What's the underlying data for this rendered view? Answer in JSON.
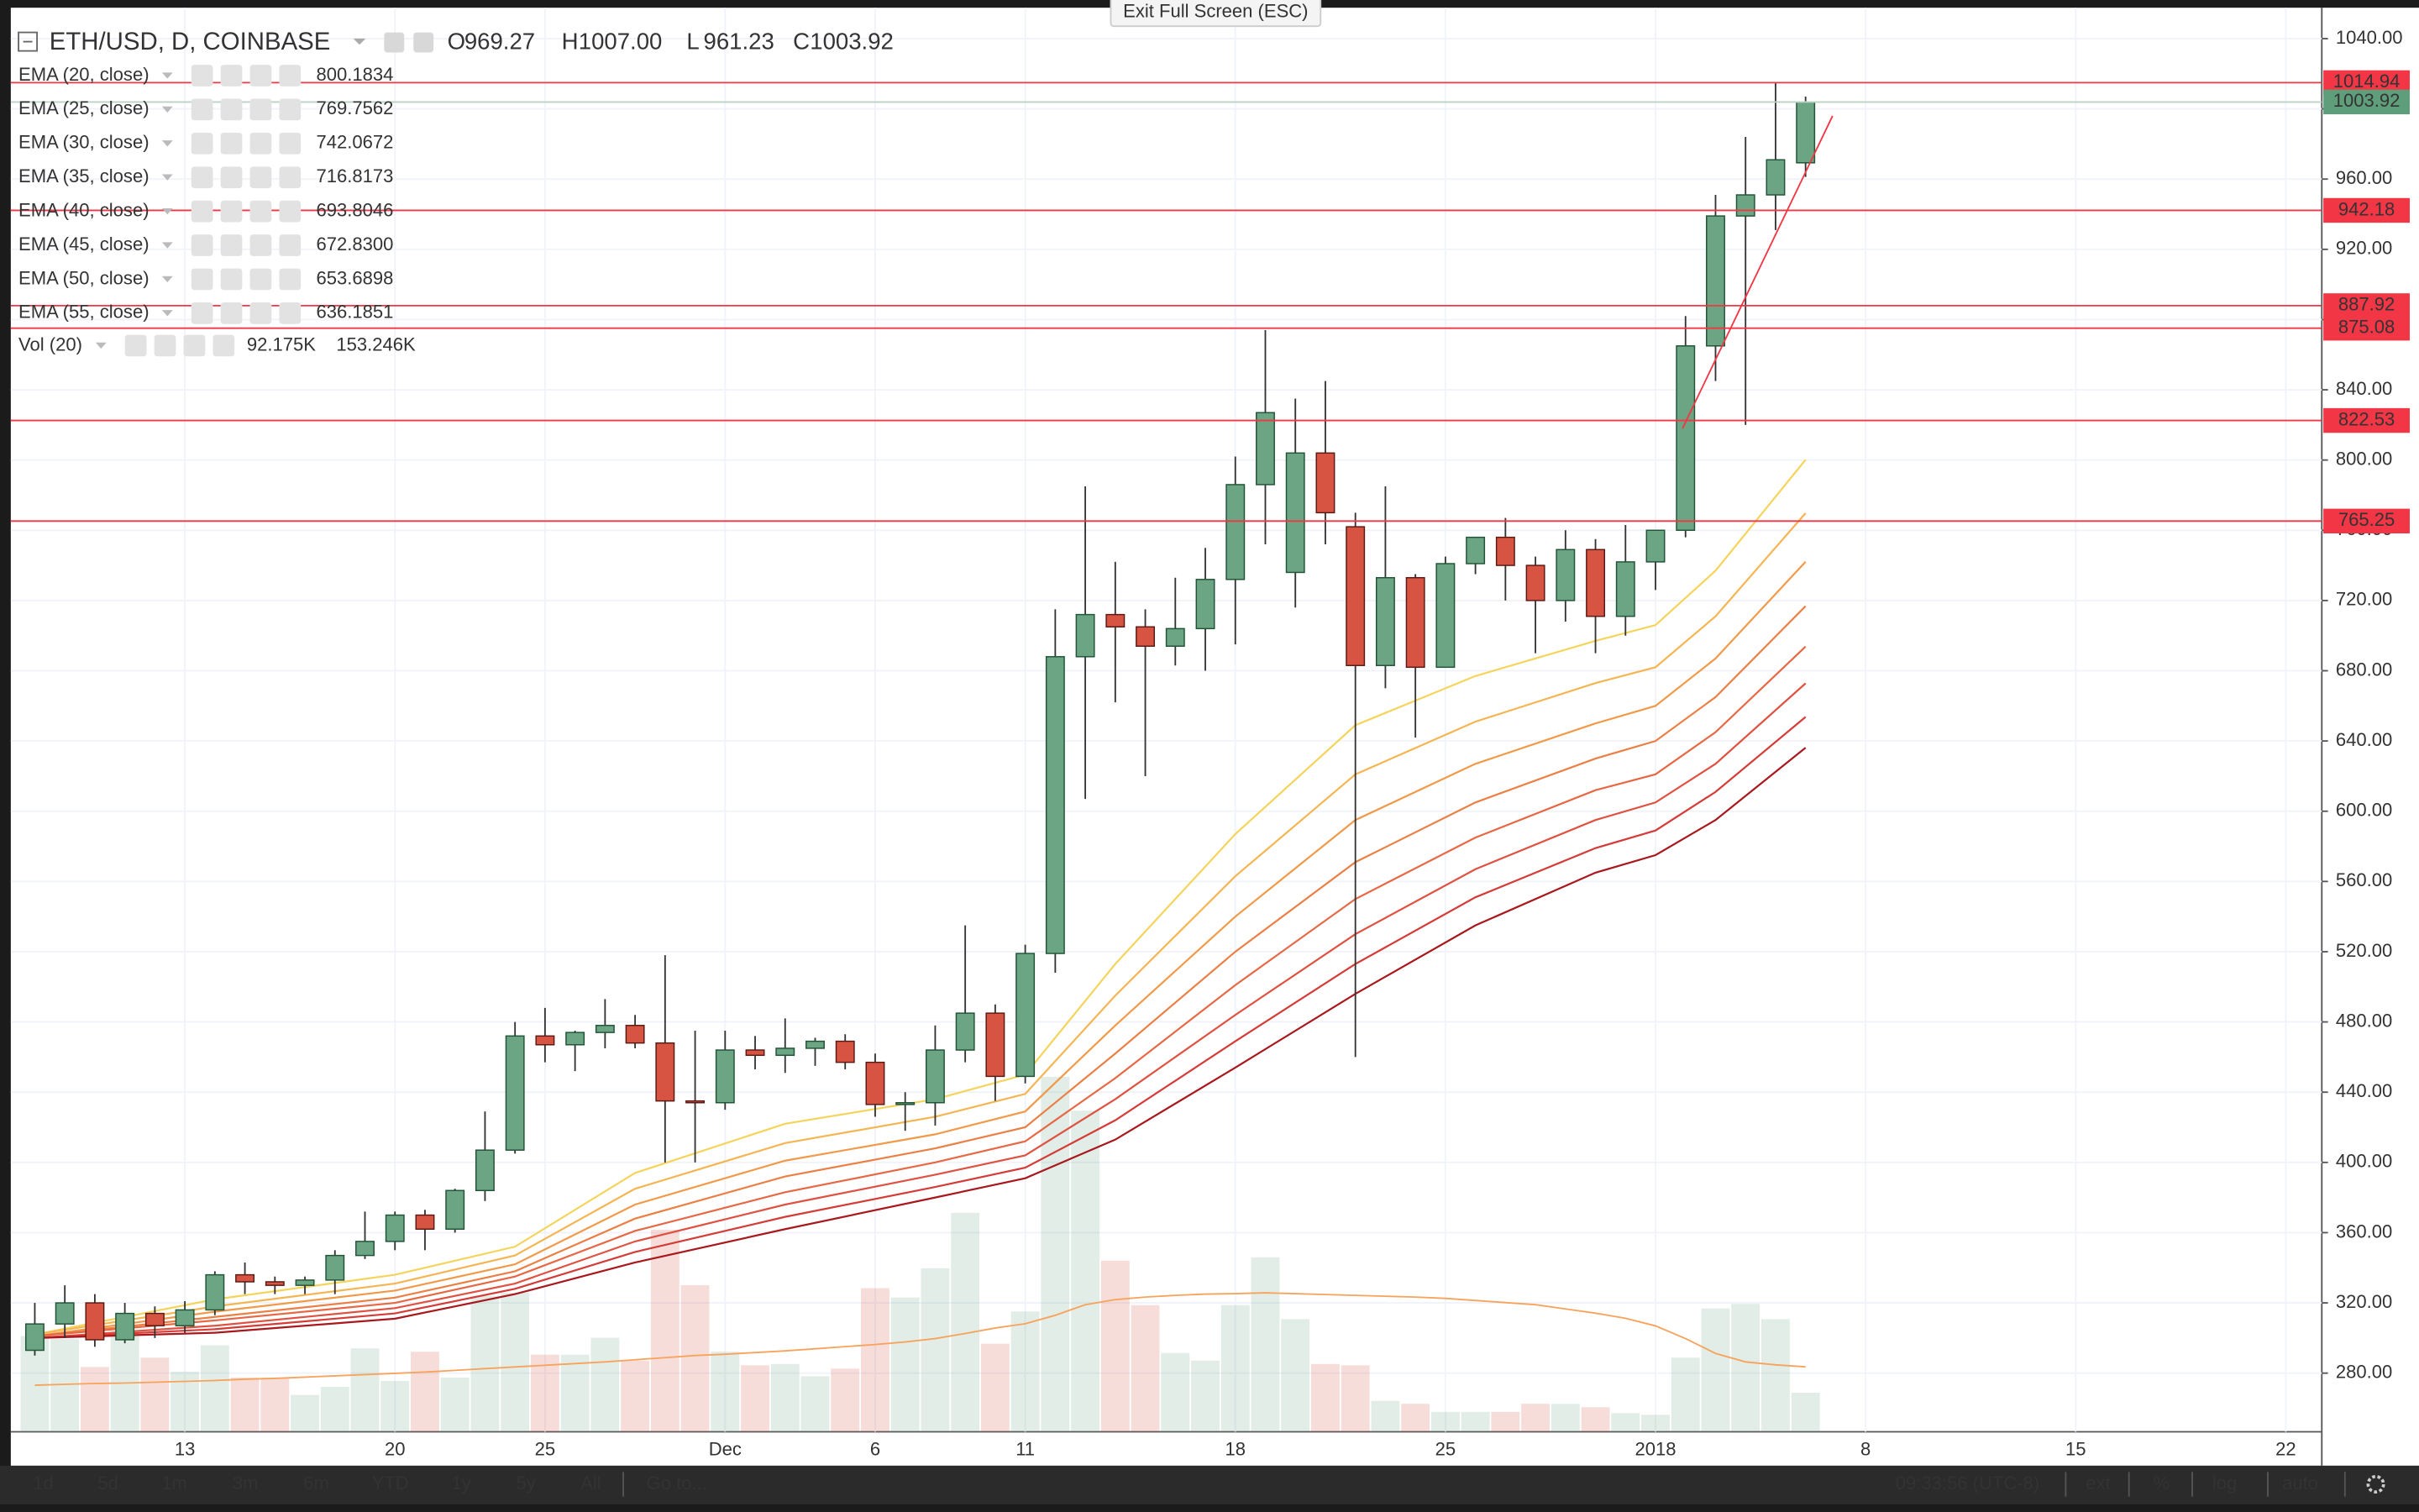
{
  "chart_data": {
    "type": "candlestick",
    "title": "ETH/USD, D, COINBASE",
    "ohlc": [
      {
        "key": "O",
        "value": "969.27"
      },
      {
        "key": "H",
        "value": "1007.00"
      },
      {
        "key": "L",
        "value": "961.23"
      },
      {
        "key": "C",
        "value": "1003.92"
      }
    ],
    "xlim": [
      7.2,
      84.2
    ],
    "ylim": [
      246.6,
      1057.6
    ],
    "xticks": [
      13,
      20,
      25,
      {
        "value": 31,
        "label": "Dec"
      },
      {
        "value": 36,
        "label": "6"
      },
      {
        "value": 41,
        "label": "11"
      },
      {
        "value": 48,
        "label": "18"
      },
      {
        "value": 55,
        "label": "25"
      },
      {
        "value": 62,
        "label": "2018"
      },
      {
        "value": 69,
        "label": "8"
      },
      {
        "value": 76,
        "label": "15"
      },
      {
        "value": 83,
        "label": "22"
      }
    ],
    "yticks": [
      {
        "value": 280,
        "label": "280.00"
      },
      {
        "value": 320,
        "label": "320.00"
      },
      {
        "value": 360,
        "label": "360.00"
      },
      {
        "value": 400,
        "label": "400.00"
      },
      {
        "value": 440,
        "label": "440.00"
      },
      {
        "value": 480,
        "label": "480.00"
      },
      {
        "value": 520,
        "label": "520.00"
      },
      {
        "value": 560,
        "label": "560.00"
      },
      {
        "value": 600,
        "label": "600.00"
      },
      {
        "value": 640,
        "label": "640.00"
      },
      {
        "value": 680,
        "label": "680.00"
      },
      {
        "value": 720,
        "label": "720.00"
      },
      {
        "value": 760,
        "label": "760.00"
      },
      {
        "value": 800,
        "label": "800.00"
      },
      {
        "value": 840,
        "label": "840.00"
      },
      {
        "value": 880,
        "label": "880.00"
      },
      {
        "value": 920,
        "label": "920.00"
      },
      {
        "value": 960,
        "label": "960.00"
      },
      {
        "value": 1000,
        "label": "1000.00"
      },
      {
        "value": 1040,
        "label": "1040.00"
      }
    ],
    "grid": true,
    "up_color": "#6ba583",
    "down_color": "#d75442",
    "x": [
      8,
      9,
      10,
      11,
      12,
      13,
      14,
      15,
      16,
      17,
      18,
      19,
      20,
      21,
      22,
      23,
      24,
      25,
      26,
      27,
      28,
      29,
      30,
      31,
      32,
      33,
      34,
      35,
      36,
      37,
      38,
      39,
      40,
      41,
      42,
      43,
      44,
      45,
      46,
      47,
      48,
      49,
      50,
      51,
      52,
      53,
      54,
      55,
      56,
      57,
      58,
      59,
      60,
      61,
      62,
      63,
      64,
      65,
      66,
      67
    ],
    "open": [
      293,
      308,
      320,
      299,
      314,
      307,
      316,
      336,
      332,
      330,
      333,
      347,
      355,
      370,
      362,
      384,
      407,
      472,
      467,
      474,
      478,
      468,
      435,
      434,
      464,
      461,
      465,
      469,
      457,
      433,
      434,
      464,
      485,
      449,
      519,
      688,
      712,
      705,
      694,
      704,
      732,
      786,
      736,
      804,
      762,
      683,
      733,
      682,
      741,
      756,
      740,
      720,
      749,
      711,
      742,
      760,
      865,
      939,
      951,
      969.27
    ],
    "high": [
      320,
      330,
      325,
      320,
      318,
      321,
      338,
      343,
      335,
      335,
      350,
      372,
      372,
      373,
      385,
      429,
      480,
      488,
      475,
      493,
      484,
      518,
      475,
      475,
      472,
      482,
      471,
      473,
      462,
      440,
      478,
      535,
      490,
      524,
      715,
      785,
      742,
      715,
      733,
      750,
      802,
      874,
      835,
      845,
      770,
      785,
      735,
      745,
      756,
      767,
      745,
      760,
      755,
      763,
      760,
      882,
      951,
      984,
      1014.94,
      1007
    ],
    "low": [
      290,
      300,
      295,
      297,
      300,
      303,
      313,
      325,
      325,
      325,
      325,
      345,
      350,
      350,
      360,
      378,
      405,
      457,
      452,
      465,
      465,
      400,
      400,
      430,
      453,
      451,
      455,
      453,
      426,
      418,
      421,
      457,
      435,
      445,
      508,
      607,
      662,
      620,
      683,
      680,
      695,
      752,
      716,
      752,
      460,
      670,
      642,
      682,
      735,
      720,
      690,
      708,
      690,
      700,
      726,
      756,
      845,
      820,
      931,
      961.23
    ],
    "close": [
      308,
      320,
      299,
      314,
      307,
      316,
      336,
      332,
      330,
      333,
      347,
      355,
      370,
      362,
      384,
      407,
      472,
      467,
      474,
      478,
      468,
      435,
      434,
      464,
      461,
      465,
      469,
      457,
      433,
      434,
      464,
      485,
      449,
      519,
      688,
      712,
      705,
      694,
      704,
      732,
      786,
      827,
      804,
      770,
      683,
      733,
      682,
      741,
      756,
      740,
      720,
      749,
      711,
      742,
      760,
      865,
      939,
      951,
      971,
      1003.92
    ],
    "ema": {
      "x": [
        8,
        14,
        20,
        24,
        28,
        33,
        38,
        41,
        44,
        48,
        52,
        56,
        60,
        62,
        64,
        67
      ],
      "series": [
        {
          "name": "EMA (20, close)",
          "color": "#f5d45c",
          "legend_value": "800.1834",
          "values": [
            302,
            322,
            336,
            352,
            394,
            422,
            436,
            450,
            513,
            587,
            649,
            677,
            697,
            706,
            737,
            800.1834
          ]
        },
        {
          "name": "EMA (25, close)",
          "color": "#f4b553",
          "legend_value": "769.7562",
          "values": [
            302,
            318,
            331,
            347,
            385,
            411,
            426,
            439,
            495,
            563,
            621,
            651,
            673,
            682,
            711,
            769.7562
          ]
        },
        {
          "name": "EMA (30, close)",
          "color": "#f09a4a",
          "legend_value": "742.0672",
          "values": [
            301,
            315,
            327,
            342,
            376,
            401,
            416,
            429,
            478,
            540,
            595,
            627,
            650,
            660,
            687,
            742.0672
          ]
        },
        {
          "name": "EMA (35, close)",
          "color": "#eb8046",
          "legend_value": "716.8173",
          "values": [
            301,
            312,
            323,
            338,
            368,
            392,
            408,
            420,
            462,
            520,
            571,
            605,
            630,
            640,
            665,
            716.8173
          ]
        },
        {
          "name": "EMA (40, close)",
          "color": "#e66845",
          "legend_value": "693.8046",
          "values": [
            301,
            310,
            320,
            335,
            361,
            383,
            400,
            412,
            448,
            501,
            550,
            585,
            612,
            621,
            645,
            693.8046
          ]
        },
        {
          "name": "EMA (45, close)",
          "color": "#df5242",
          "legend_value": "672.8300",
          "values": [
            300,
            307,
            317,
            331,
            355,
            376,
            393,
            404,
            436,
            484,
            530,
            567,
            595,
            605,
            627,
            672.83
          ]
        },
        {
          "name": "EMA (50, close)",
          "color": "#d43c38",
          "legend_value": "653.6898",
          "values": [
            300,
            305,
            314,
            328,
            349,
            369,
            386,
            397,
            424,
            469,
            513,
            551,
            579,
            589,
            611,
            653.6898
          ]
        },
        {
          "name": "EMA (55, close)",
          "color": "#a8181c",
          "legend_value": "636.1851",
          "values": [
            300,
            303,
            311,
            325,
            343,
            362,
            380,
            391,
            413,
            454,
            496,
            535,
            565,
            575,
            595,
            636.1851
          ]
        }
      ]
    },
    "volume": {
      "name": "Vol (20)",
      "legend_values": [
        "92.175K",
        "153.246K"
      ],
      "vlim": [
        0,
        3362
      ],
      "values": [
        226,
        219,
        153,
        226,
        175,
        142,
        204,
        128,
        128,
        87,
        106,
        197,
        120,
        189,
        128,
        321,
        328,
        182,
        182,
        222,
        168,
        477,
        346,
        189,
        157,
        160,
        131,
        149,
        339,
        317,
        386,
        517,
        208,
        284,
        838,
        758,
        404,
        299,
        186,
        168,
        299,
        412,
        266,
        160,
        157,
        73,
        66,
        47,
        47,
        47,
        66,
        66,
        58,
        44,
        40,
        175,
        291,
        302,
        266,
        92.175
      ],
      "ma_color": "#f7a35c",
      "ma": [
        110,
        112,
        114,
        115,
        117,
        119,
        121,
        124,
        126,
        129,
        132,
        135,
        138,
        141,
        145,
        149,
        153,
        157,
        161,
        165,
        170,
        175,
        180,
        183,
        187,
        191,
        196,
        201,
        206,
        212,
        220,
        232,
        245,
        255,
        275,
        300,
        312,
        318,
        322,
        325,
        326,
        328,
        326,
        324,
        322,
        320,
        318,
        315,
        310,
        305,
        300,
        290,
        280,
        268,
        250,
        220,
        185,
        165,
        158,
        153.246
      ]
    },
    "levels": {
      "color": "#f23645",
      "values": [
        1014.94,
        942.18,
        887.92,
        875.08,
        822.53,
        765.25
      ]
    },
    "last_price": {
      "color": "#5f9e7b",
      "value": 1003.92
    },
    "trendline": {
      "color": "#f23645",
      "x": [
        62.9,
        67.9
      ],
      "y": [
        818,
        996
      ]
    }
  },
  "fullscreen_hint": "Exit Full Screen (ESC)",
  "toolbar": {
    "ranges": [
      "1d",
      "5d",
      "1m",
      "3m",
      "6m",
      "YTD",
      "1y",
      "5y",
      "All"
    ],
    "goto": "Go to...",
    "clock": "09:33:56 (UTC-8)",
    "options": [
      "ext",
      "%",
      "log",
      "auto"
    ]
  }
}
